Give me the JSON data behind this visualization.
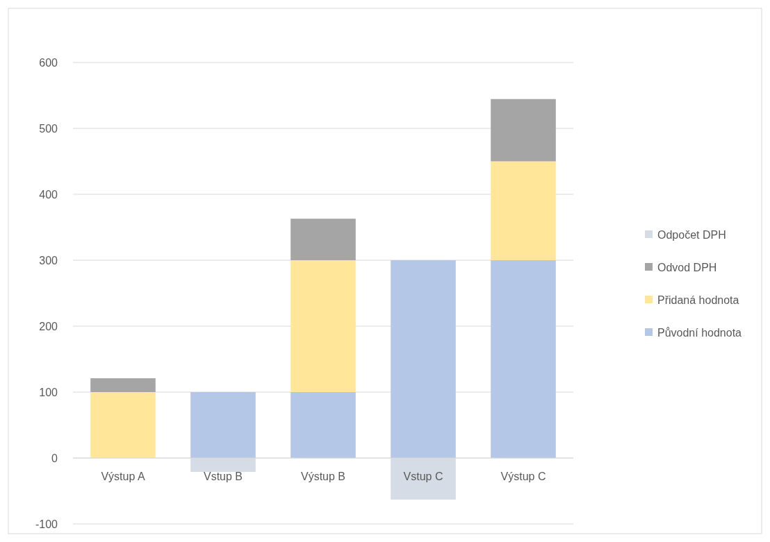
{
  "chart_data": {
    "type": "bar",
    "stacked": true,
    "categories": [
      "Výstup A",
      "Vstup B",
      "Výstup B",
      "Vstup C",
      "Výstup C"
    ],
    "series": [
      {
        "name": "Původní hodnota",
        "color": "#b4c7e7",
        "values": [
          0,
          100,
          100,
          300,
          300
        ]
      },
      {
        "name": "Přidaná hodnota",
        "color": "#ffe699",
        "values": [
          100,
          0,
          200,
          0,
          150
        ]
      },
      {
        "name": "Odvod DPH",
        "color": "#a5a5a5",
        "values": [
          21,
          0,
          63,
          0,
          94.5
        ]
      },
      {
        "name": "Odpočet DPH",
        "color": "#d6dce5",
        "values": [
          0,
          -21,
          0,
          -63,
          0
        ]
      }
    ],
    "ylim": [
      -100,
      600
    ],
    "yticks": [
      -100,
      0,
      100,
      200,
      300,
      400,
      500,
      600
    ],
    "grid": "y",
    "legend": "right"
  }
}
